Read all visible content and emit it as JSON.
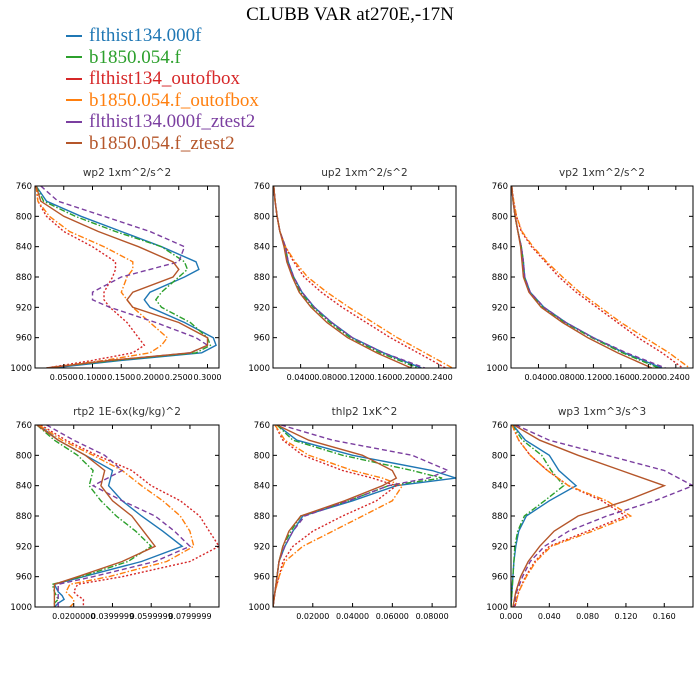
{
  "title": "CLUBB VAR at270E,-17N",
  "legend": [
    {
      "name": "flthist134.000f",
      "color": "#1f77b4",
      "dash": "solid"
    },
    {
      "name": "b1850.054.f",
      "color": "#2ca02c",
      "dash": "dashdot"
    },
    {
      "name": "flthist134_outofbox",
      "color": "#d62728",
      "dash": "dotted"
    },
    {
      "name": "b1850.054.f_outofbox",
      "color": "#ff7f0e",
      "dash": "dashdot"
    },
    {
      "name": "flthist134.000f_ztest2",
      "color": "#7b3fa0",
      "dash": "dashed"
    },
    {
      "name": "b1850.054.f_ztest2",
      "color": "#b5562a",
      "dash": "solid"
    }
  ],
  "chart_data": [
    {
      "type": "line",
      "title": "wp2   1xm^2/s^2",
      "xlim": [
        0,
        0.32
      ],
      "ylim": [
        760,
        1000
      ],
      "y_reversed": true,
      "yticks": [
        "760",
        "800",
        "840",
        "880",
        "920",
        "960",
        "1000"
      ],
      "xticks": [
        0.05,
        0.1,
        0.15,
        0.2,
        0.25,
        0.3
      ],
      "xtick_labels": [
        "0.0500",
        "0.1000",
        "0.1500",
        "0.2000",
        "0.2500",
        "0.3000"
      ],
      "y": [
        760,
        780,
        800,
        820,
        840,
        860,
        870,
        880,
        900,
        910,
        920,
        940,
        960,
        970,
        980,
        990,
        1000
      ],
      "series": [
        {
          "name": "flthist134.000f",
          "values": [
            0.002,
            0.02,
            0.08,
            0.15,
            0.22,
            0.28,
            0.285,
            0.26,
            0.2,
            0.19,
            0.2,
            0.26,
            0.31,
            0.315,
            0.29,
            0.15,
            0.03
          ]
        },
        {
          "name": "b1850.054.f",
          "values": [
            0.002,
            0.015,
            0.07,
            0.14,
            0.22,
            0.26,
            0.265,
            0.25,
            0.22,
            0.21,
            0.22,
            0.27,
            0.3,
            0.305,
            0.28,
            0.14,
            0.02
          ]
        },
        {
          "name": "flthist134_outofbox",
          "values": [
            0.002,
            0.005,
            0.02,
            0.05,
            0.1,
            0.14,
            0.14,
            0.135,
            0.12,
            0.12,
            0.13,
            0.16,
            0.18,
            0.19,
            0.17,
            0.1,
            0.02
          ]
        },
        {
          "name": "b1850.054.f_outofbox",
          "values": [
            0.002,
            0.005,
            0.025,
            0.06,
            0.12,
            0.17,
            0.17,
            0.16,
            0.15,
            0.16,
            0.17,
            0.2,
            0.23,
            0.22,
            0.2,
            0.12,
            0.02
          ]
        },
        {
          "name": "flthist134.000f_ztest2",
          "values": [
            0.01,
            0.04,
            0.12,
            0.2,
            0.26,
            0.25,
            0.2,
            0.15,
            0.1,
            0.1,
            0.13,
            0.21,
            0.28,
            0.3,
            0.27,
            0.13,
            0.02
          ]
        },
        {
          "name": "b1850.054.f_ztest2",
          "values": [
            0.002,
            0.01,
            0.05,
            0.11,
            0.18,
            0.24,
            0.25,
            0.24,
            0.17,
            0.16,
            0.17,
            0.25,
            0.3,
            0.3,
            0.27,
            0.13,
            0.02
          ]
        }
      ]
    },
    {
      "type": "line",
      "title": "up2   1xm^2/s^2",
      "xlim": [
        0,
        0.265
      ],
      "ylim": [
        760,
        1000
      ],
      "y_reversed": true,
      "yticks": [
        "760",
        "800",
        "840",
        "880",
        "920",
        "960",
        "1000"
      ],
      "xticks": [
        0.04,
        0.08,
        0.12,
        0.16,
        0.2,
        0.24
      ],
      "xtick_labels": [
        "0.0400",
        "0.0800",
        "0.1200",
        "0.1600",
        "0.2000",
        "0.2400"
      ],
      "y": [
        760,
        780,
        800,
        820,
        840,
        860,
        880,
        900,
        920,
        940,
        960,
        980,
        1000
      ],
      "series": [
        {
          "name": "flthist134.000f",
          "values": [
            0.001,
            0.003,
            0.006,
            0.01,
            0.018,
            0.022,
            0.03,
            0.042,
            0.06,
            0.085,
            0.115,
            0.16,
            0.215
          ]
        },
        {
          "name": "b1850.054.f",
          "values": [
            0.001,
            0.003,
            0.006,
            0.01,
            0.018,
            0.021,
            0.029,
            0.04,
            0.058,
            0.082,
            0.112,
            0.155,
            0.21
          ]
        },
        {
          "name": "flthist134_outofbox",
          "values": [
            0.001,
            0.003,
            0.006,
            0.01,
            0.018,
            0.03,
            0.045,
            0.07,
            0.1,
            0.135,
            0.17,
            0.21,
            0.25
          ]
        },
        {
          "name": "b1850.054.f_outofbox",
          "values": [
            0.001,
            0.003,
            0.006,
            0.01,
            0.018,
            0.032,
            0.05,
            0.078,
            0.11,
            0.145,
            0.18,
            0.22,
            0.26
          ]
        },
        {
          "name": "flthist134.000f_ztest2",
          "values": [
            0.001,
            0.003,
            0.006,
            0.01,
            0.018,
            0.022,
            0.03,
            0.042,
            0.06,
            0.085,
            0.115,
            0.16,
            0.22
          ]
        },
        {
          "name": "b1850.054.f_ztest2",
          "values": [
            0.001,
            0.003,
            0.006,
            0.01,
            0.016,
            0.02,
            0.028,
            0.038,
            0.055,
            0.078,
            0.108,
            0.15,
            0.2
          ]
        }
      ]
    },
    {
      "type": "line",
      "title": "vp2   1xm^2/s^2",
      "xlim": [
        0,
        0.265
      ],
      "ylim": [
        760,
        1000
      ],
      "y_reversed": true,
      "yticks": [
        "760",
        "800",
        "840",
        "880",
        "920",
        "960",
        "1000"
      ],
      "xticks": [
        0.04,
        0.08,
        0.12,
        0.16,
        0.2,
        0.24
      ],
      "xtick_labels": [
        "0.0400",
        "0.0800",
        "0.1200",
        "0.1600",
        "0.2000",
        "0.2400"
      ],
      "y": [
        760,
        780,
        800,
        820,
        840,
        860,
        880,
        900,
        920,
        940,
        960,
        980,
        1000
      ],
      "series": [
        {
          "name": "flthist134.000f",
          "values": [
            0.001,
            0.003,
            0.006,
            0.01,
            0.015,
            0.018,
            0.02,
            0.028,
            0.048,
            0.08,
            0.12,
            0.165,
            0.22
          ]
        },
        {
          "name": "b1850.054.f",
          "values": [
            0.001,
            0.003,
            0.006,
            0.01,
            0.015,
            0.018,
            0.019,
            0.027,
            0.046,
            0.078,
            0.118,
            0.162,
            0.215
          ]
        },
        {
          "name": "flthist134_outofbox",
          "values": [
            0.001,
            0.004,
            0.008,
            0.015,
            0.03,
            0.05,
            0.07,
            0.095,
            0.125,
            0.155,
            0.185,
            0.22,
            0.25
          ]
        },
        {
          "name": "b1850.054.f_outofbox",
          "values": [
            0.001,
            0.004,
            0.008,
            0.016,
            0.032,
            0.052,
            0.075,
            0.1,
            0.13,
            0.16,
            0.195,
            0.23,
            0.26
          ]
        },
        {
          "name": "flthist134.000f_ztest2",
          "values": [
            0.001,
            0.003,
            0.006,
            0.01,
            0.015,
            0.018,
            0.02,
            0.028,
            0.048,
            0.08,
            0.12,
            0.168,
            0.225
          ]
        },
        {
          "name": "b1850.054.f_ztest2",
          "values": [
            0.001,
            0.003,
            0.006,
            0.01,
            0.014,
            0.016,
            0.018,
            0.026,
            0.044,
            0.075,
            0.112,
            0.155,
            0.205
          ]
        }
      ]
    },
    {
      "type": "line",
      "title": "rtp2   1E-6x(kg/kg)^2",
      "xlim": [
        0,
        0.095
      ],
      "ylim": [
        760,
        1000
      ],
      "y_reversed": true,
      "yticks": [
        "760",
        "800",
        "840",
        "880",
        "920",
        "960",
        "1000"
      ],
      "xticks": [
        0.02,
        0.04,
        0.06,
        0.08
      ],
      "xtick_labels": [
        "0.0200000",
        "0.0399999",
        "0.0599999",
        "0.0799999"
      ],
      "y": [
        760,
        780,
        800,
        820,
        840,
        860,
        880,
        900,
        920,
        940,
        960,
        970,
        980,
        985,
        990,
        995,
        1000
      ],
      "series": [
        {
          "name": "flthist134.000f",
          "values": [
            0.002,
            0.012,
            0.026,
            0.04,
            0.038,
            0.045,
            0.055,
            0.066,
            0.076,
            0.055,
            0.025,
            0.01,
            0.012,
            0.014,
            0.015,
            0.012,
            0.01
          ]
        },
        {
          "name": "b1850.054.f",
          "values": [
            0.001,
            0.01,
            0.022,
            0.03,
            0.028,
            0.034,
            0.042,
            0.052,
            0.06,
            0.048,
            0.024,
            0.009,
            0.01,
            0.011,
            0.012,
            0.01,
            0.01
          ]
        },
        {
          "name": "flthist134_outofbox",
          "values": [
            0.003,
            0.016,
            0.032,
            0.05,
            0.06,
            0.075,
            0.085,
            0.09,
            0.095,
            0.08,
            0.045,
            0.022,
            0.02,
            0.022,
            0.025,
            0.025,
            0.025
          ]
        },
        {
          "name": "b1850.054.f_outofbox",
          "values": [
            0.002,
            0.014,
            0.03,
            0.045,
            0.055,
            0.066,
            0.075,
            0.08,
            0.082,
            0.068,
            0.038,
            0.018,
            0.016,
            0.018,
            0.02,
            0.02,
            0.018
          ]
        },
        {
          "name": "flthist134.000f_ztest2",
          "values": [
            0.006,
            0.02,
            0.036,
            0.045,
            0.03,
            0.045,
            0.062,
            0.072,
            0.08,
            0.062,
            0.03,
            0.012,
            0.012,
            0.012,
            0.012,
            0.012,
            0.012
          ]
        },
        {
          "name": "b1850.054.f_ztest2",
          "values": [
            0.001,
            0.012,
            0.026,
            0.036,
            0.034,
            0.04,
            0.05,
            0.056,
            0.062,
            0.045,
            0.022,
            0.01,
            0.01,
            0.01,
            0.01,
            0.01,
            0.01
          ]
        }
      ]
    },
    {
      "type": "line",
      "title": "thlp2   1xK^2",
      "xlim": [
        0,
        0.092
      ],
      "ylim": [
        760,
        1000
      ],
      "y_reversed": true,
      "yticks": [
        "760",
        "800",
        "840",
        "880",
        "920",
        "960",
        "1000"
      ],
      "xticks": [
        0.02,
        0.04,
        0.06,
        0.08
      ],
      "xtick_labels": [
        "0.02000",
        "0.04000",
        "0.06000",
        "0.08000"
      ],
      "y": [
        760,
        780,
        800,
        820,
        830,
        840,
        860,
        880,
        900,
        920,
        940,
        960,
        980,
        1000
      ],
      "series": [
        {
          "name": "flthist134.000f",
          "values": [
            0.002,
            0.012,
            0.04,
            0.08,
            0.092,
            0.062,
            0.04,
            0.015,
            0.01,
            0.006,
            0.003,
            0.002,
            0.001,
            0.0
          ]
        },
        {
          "name": "b1850.054.f",
          "values": [
            0.002,
            0.01,
            0.035,
            0.07,
            0.085,
            0.058,
            0.038,
            0.014,
            0.009,
            0.005,
            0.003,
            0.002,
            0.001,
            0.0
          ]
        },
        {
          "name": "flthist134_outofbox",
          "values": [
            0.001,
            0.005,
            0.015,
            0.035,
            0.05,
            0.062,
            0.052,
            0.035,
            0.02,
            0.01,
            0.005,
            0.003,
            0.001,
            0.0
          ]
        },
        {
          "name": "b1850.054.f_outofbox",
          "values": [
            0.001,
            0.006,
            0.018,
            0.04,
            0.055,
            0.065,
            0.06,
            0.045,
            0.03,
            0.015,
            0.006,
            0.003,
            0.001,
            0.0
          ]
        },
        {
          "name": "flthist134.000f_ztest2",
          "values": [
            0.004,
            0.03,
            0.07,
            0.088,
            0.078,
            0.058,
            0.038,
            0.016,
            0.01,
            0.006,
            0.003,
            0.002,
            0.001,
            0.0
          ]
        },
        {
          "name": "b1850.054.f_ztest2",
          "values": [
            0.002,
            0.018,
            0.045,
            0.06,
            0.062,
            0.055,
            0.036,
            0.014,
            0.008,
            0.005,
            0.003,
            0.002,
            0.001,
            0.0
          ]
        }
      ]
    },
    {
      "type": "line",
      "title": "wp3   1xm^3/s^3",
      "xlim": [
        0,
        0.19
      ],
      "ylim": [
        760,
        1000
      ],
      "y_reversed": true,
      "yticks": [
        "760",
        "800",
        "840",
        "880",
        "920",
        "960",
        "1000"
      ],
      "xticks": [
        0,
        0.04,
        0.08,
        0.12,
        0.16
      ],
      "xtick_labels": [
        "0.000",
        "0.040",
        "0.080",
        "0.120",
        "0.160"
      ],
      "y": [
        760,
        780,
        800,
        820,
        840,
        860,
        880,
        900,
        920,
        940,
        960,
        980,
        1000
      ],
      "series": [
        {
          "name": "flthist134.000f",
          "values": [
            0.002,
            0.015,
            0.04,
            0.05,
            0.068,
            0.04,
            0.016,
            0.008,
            0.005,
            0.003,
            0.002,
            0.001,
            0.0
          ]
        },
        {
          "name": "b1850.054.f",
          "values": [
            0.001,
            0.012,
            0.032,
            0.042,
            0.055,
            0.035,
            0.014,
            0.007,
            0.004,
            0.003,
            0.002,
            0.001,
            0.0
          ]
        },
        {
          "name": "flthist134_outofbox",
          "values": [
            0.001,
            0.008,
            0.02,
            0.038,
            0.06,
            0.095,
            0.12,
            0.08,
            0.04,
            0.025,
            0.015,
            0.008,
            0.004
          ]
        },
        {
          "name": "b1850.054.f_outofbox",
          "values": [
            0.001,
            0.008,
            0.02,
            0.038,
            0.06,
            0.1,
            0.125,
            0.085,
            0.042,
            0.026,
            0.016,
            0.008,
            0.004
          ]
        },
        {
          "name": "flthist134.000f_ztest2",
          "values": [
            0.005,
            0.04,
            0.1,
            0.16,
            0.19,
            0.15,
            0.1,
            0.06,
            0.035,
            0.02,
            0.012,
            0.006,
            0.003
          ]
        },
        {
          "name": "b1850.054.f_ztest2",
          "values": [
            0.003,
            0.03,
            0.07,
            0.115,
            0.16,
            0.12,
            0.07,
            0.045,
            0.03,
            0.018,
            0.01,
            0.005,
            0.002
          ]
        }
      ]
    }
  ]
}
